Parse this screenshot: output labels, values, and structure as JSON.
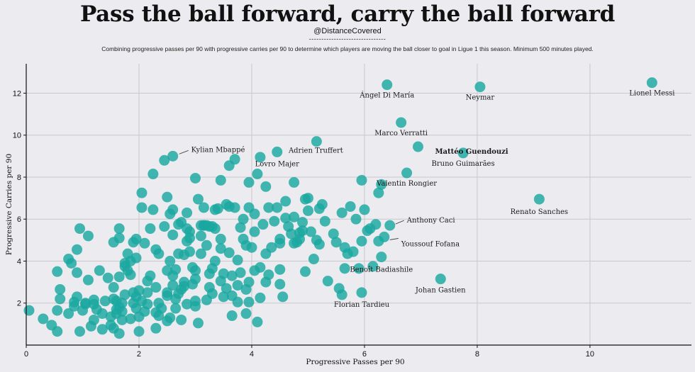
{
  "header": {
    "title": "Pass the ball forward, carry the ball forward",
    "handle": "@DistanceCovered",
    "dashes": "-------------------------------",
    "subtitle": "Combining progressive passes per 90 with progressive carries per 90 to determine which players are moving the ball closer to goal in Ligue 1 this season. Minimum 500 minutes played."
  },
  "colors": {
    "point": "#1aa7a0",
    "background": "#ecebef",
    "grid": "#c9c8cc"
  },
  "chart_data": {
    "type": "scatter",
    "xlabel": "Progressive Passes per 90",
    "ylabel": "Progressive Carries per 90",
    "xlim": [
      0,
      11.8
    ],
    "ylim": [
      0,
      13.4
    ],
    "xticks": [
      0,
      2,
      4,
      6,
      8,
      10
    ],
    "yticks": [
      2,
      4,
      6,
      8,
      10,
      12
    ],
    "grid": true,
    "labeled_points": [
      {
        "name": "Lionel Messi",
        "x": 11.1,
        "y": 12.5
      },
      {
        "name": "Neymar",
        "x": 8.05,
        "y": 12.3
      },
      {
        "name": "Ángel Di María",
        "x": 6.4,
        "y": 12.4
      },
      {
        "name": "Marco Verratti",
        "x": 6.65,
        "y": 10.6
      },
      {
        "name": "Mattéo Guendouzi",
        "x": 6.95,
        "y": 9.45
      },
      {
        "name": "Bruno Guimarães",
        "x": 7.75,
        "y": 9.15
      },
      {
        "name": "Valentin Rongier",
        "x": 6.75,
        "y": 8.2
      },
      {
        "name": "Renato Sanches",
        "x": 9.1,
        "y": 6.95
      },
      {
        "name": "Anthony Caci",
        "x": 6.45,
        "y": 5.7
      },
      {
        "name": "Youssouf Fofana",
        "x": 6.35,
        "y": 5.15
      },
      {
        "name": "Benoît Badiashile",
        "x": 6.3,
        "y": 4.2
      },
      {
        "name": "Johan Gastien",
        "x": 7.35,
        "y": 3.15
      },
      {
        "name": "Florian Tardieu",
        "x": 5.95,
        "y": 2.5
      },
      {
        "name": "Adrien Truffert",
        "x": 5.15,
        "y": 9.7
      },
      {
        "name": "Lovro Majer",
        "x": 4.45,
        "y": 9.2
      },
      {
        "name": "Kylian Mbappé",
        "x": 2.6,
        "y": 9.0
      }
    ],
    "points": [
      [
        0.05,
        1.65
      ],
      [
        0.3,
        1.25
      ],
      [
        0.45,
        0.95
      ],
      [
        0.55,
        0.65
      ],
      [
        0.55,
        1.65
      ],
      [
        0.6,
        2.2
      ],
      [
        0.6,
        2.65
      ],
      [
        0.55,
        3.5
      ],
      [
        0.75,
        1.5
      ],
      [
        0.75,
        4.1
      ],
      [
        0.8,
        3.9
      ],
      [
        0.85,
        2.05
      ],
      [
        0.9,
        2.3
      ],
      [
        0.9,
        4.55
      ],
      [
        0.9,
        3.45
      ],
      [
        0.95,
        0.65
      ],
      [
        0.95,
        5.55
      ],
      [
        1.0,
        1.65
      ],
      [
        1.05,
        2.0
      ],
      [
        1.1,
        3.1
      ],
      [
        1.1,
        5.2
      ],
      [
        1.15,
        0.9
      ],
      [
        1.2,
        2.15
      ],
      [
        1.2,
        1.2
      ],
      [
        1.2,
        1.95
      ],
      [
        1.3,
        3.55
      ],
      [
        1.35,
        1.5
      ],
      [
        1.35,
        0.75
      ],
      [
        1.4,
        2.1
      ],
      [
        1.45,
        3.2
      ],
      [
        1.5,
        0.95
      ],
      [
        1.5,
        1.35
      ],
      [
        1.55,
        2.2
      ],
      [
        1.55,
        4.9
      ],
      [
        1.55,
        2.75
      ],
      [
        1.55,
        0.8
      ],
      [
        1.6,
        1.7
      ],
      [
        1.6,
        2.1
      ],
      [
        1.6,
        1.5
      ],
      [
        1.65,
        3.25
      ],
      [
        1.65,
        5.1
      ],
      [
        1.65,
        5.55
      ],
      [
        1.65,
        1.8
      ],
      [
        1.65,
        0.55
      ],
      [
        1.7,
        1.2
      ],
      [
        1.7,
        1.6
      ],
      [
        1.7,
        2.0
      ],
      [
        1.75,
        2.4
      ],
      [
        1.75,
        3.9
      ],
      [
        1.8,
        4.35
      ],
      [
        1.8,
        3.55
      ],
      [
        1.85,
        1.25
      ],
      [
        1.85,
        4.0
      ],
      [
        1.9,
        2.0
      ],
      [
        1.9,
        2.5
      ],
      [
        1.9,
        4.9
      ],
      [
        1.95,
        2.3
      ],
      [
        1.95,
        1.75
      ],
      [
        1.95,
        4.15
      ],
      [
        1.95,
        5.05
      ],
      [
        2.0,
        2.6
      ],
      [
        2.0,
        0.65
      ],
      [
        2.05,
        6.55
      ],
      [
        2.05,
        2.1
      ],
      [
        2.1,
        1.6
      ],
      [
        2.1,
        4.85
      ],
      [
        2.15,
        2.5
      ],
      [
        2.15,
        1.95
      ],
      [
        2.2,
        5.55
      ],
      [
        2.2,
        3.3
      ],
      [
        2.25,
        8.15
      ],
      [
        2.3,
        0.8
      ],
      [
        2.3,
        2.75
      ],
      [
        2.3,
        4.55
      ],
      [
        2.35,
        1.4
      ],
      [
        2.35,
        2.0
      ],
      [
        2.4,
        1.75
      ],
      [
        2.45,
        8.8
      ],
      [
        2.45,
        5.65
      ],
      [
        2.5,
        1.15
      ],
      [
        2.5,
        2.35
      ],
      [
        2.5,
        3.55
      ],
      [
        2.5,
        7.05
      ],
      [
        2.5,
        2.5
      ],
      [
        2.55,
        1.3
      ],
      [
        2.55,
        4.0
      ],
      [
        2.6,
        5.25
      ],
      [
        2.6,
        6.45
      ],
      [
        2.6,
        3.3
      ],
      [
        2.65,
        1.75
      ],
      [
        2.65,
        2.2
      ],
      [
        2.65,
        3.6
      ],
      [
        2.7,
        4.35
      ],
      [
        2.7,
        2.45
      ],
      [
        2.75,
        1.2
      ],
      [
        2.75,
        2.65
      ],
      [
        2.75,
        5.85
      ],
      [
        2.8,
        4.3
      ],
      [
        2.8,
        3.0
      ],
      [
        2.8,
        2.8
      ],
      [
        2.85,
        1.95
      ],
      [
        2.85,
        6.3
      ],
      [
        2.9,
        5.4
      ],
      [
        2.9,
        5.1
      ],
      [
        2.9,
        4.45
      ],
      [
        2.95,
        2.9
      ],
      [
        3.0,
        7.95
      ],
      [
        3.0,
        2.1
      ],
      [
        3.0,
        1.85
      ],
      [
        3.0,
        3.15
      ],
      [
        3.05,
        6.95
      ],
      [
        3.05,
        1.05
      ],
      [
        3.1,
        5.7
      ],
      [
        3.1,
        5.2
      ],
      [
        3.1,
        4.35
      ],
      [
        3.15,
        5.7
      ],
      [
        3.15,
        5.7
      ],
      [
        3.2,
        5.7
      ],
      [
        3.2,
        2.15
      ],
      [
        3.25,
        5.65
      ],
      [
        3.25,
        3.4
      ],
      [
        3.25,
        2.75
      ],
      [
        3.3,
        5.65
      ],
      [
        3.3,
        3.65
      ],
      [
        3.35,
        5.55
      ],
      [
        3.35,
        4.0
      ],
      [
        3.4,
        6.5
      ],
      [
        3.45,
        7.85
      ],
      [
        3.45,
        4.6
      ],
      [
        3.45,
        3.05
      ],
      [
        3.5,
        2.3
      ],
      [
        3.5,
        3.4
      ],
      [
        3.55,
        2.7
      ],
      [
        3.6,
        6.6
      ],
      [
        3.6,
        4.4
      ],
      [
        3.6,
        8.55
      ],
      [
        3.65,
        1.4
      ],
      [
        3.65,
        3.3
      ],
      [
        3.65,
        2.35
      ],
      [
        3.7,
        8.85
      ],
      [
        3.7,
        6.55
      ],
      [
        3.75,
        4.05
      ],
      [
        3.75,
        2.85
      ],
      [
        3.8,
        5.6
      ],
      [
        3.8,
        3.45
      ],
      [
        3.85,
        6.0
      ],
      [
        3.9,
        2.65
      ],
      [
        3.9,
        4.75
      ],
      [
        3.95,
        6.55
      ],
      [
        3.95,
        3.0
      ],
      [
        3.95,
        2.05
      ],
      [
        4.0,
        4.65
      ],
      [
        4.05,
        5.4
      ],
      [
        4.05,
        3.55
      ],
      [
        4.1,
        8.15
      ],
      [
        4.15,
        8.95
      ],
      [
        4.15,
        3.7
      ],
      [
        4.15,
        2.25
      ],
      [
        4.2,
        5.75
      ],
      [
        4.25,
        4.35
      ],
      [
        4.25,
        3.0
      ],
      [
        4.3,
        3.35
      ],
      [
        4.35,
        4.65
      ],
      [
        4.4,
        5.9
      ],
      [
        4.45,
        6.55
      ],
      [
        4.5,
        4.85
      ],
      [
        4.5,
        5.05
      ],
      [
        4.5,
        3.6
      ],
      [
        4.5,
        2.9
      ],
      [
        4.55,
        2.3
      ],
      [
        4.6,
        6.85
      ],
      [
        4.65,
        5.65
      ],
      [
        4.7,
        5.3
      ],
      [
        4.75,
        4.85
      ],
      [
        4.75,
        6.1
      ],
      [
        4.75,
        7.75
      ],
      [
        4.8,
        4.9
      ],
      [
        4.85,
        5.05
      ],
      [
        4.85,
        5.35
      ],
      [
        4.9,
        5.45
      ],
      [
        4.95,
        3.5
      ],
      [
        5.0,
        7.0
      ],
      [
        5.05,
        5.4
      ],
      [
        5.1,
        4.1
      ],
      [
        5.15,
        5.0
      ],
      [
        5.2,
        4.8
      ],
      [
        5.3,
        5.9
      ],
      [
        5.35,
        3.05
      ],
      [
        5.45,
        5.3
      ],
      [
        5.5,
        4.9
      ],
      [
        5.55,
        2.7
      ],
      [
        5.6,
        2.4
      ],
      [
        5.6,
        6.3
      ],
      [
        5.65,
        3.65
      ],
      [
        5.7,
        4.35
      ],
      [
        5.75,
        6.6
      ],
      [
        5.8,
        4.45
      ],
      [
        5.85,
        6.0
      ],
      [
        5.9,
        3.65
      ],
      [
        5.95,
        4.95
      ],
      [
        6.0,
        6.45
      ],
      [
        6.05,
        5.45
      ],
      [
        6.1,
        5.55
      ],
      [
        6.15,
        3.75
      ],
      [
        6.2,
        5.75
      ],
      [
        6.25,
        4.95
      ],
      [
        6.25,
        7.25
      ],
      [
        6.3,
        7.65
      ],
      [
        5.25,
        6.7
      ],
      [
        5.0,
        6.4
      ],
      [
        4.95,
        6.95
      ],
      [
        4.25,
        7.55
      ],
      [
        4.05,
        6.25
      ],
      [
        3.85,
        5.05
      ],
      [
        3.45,
        5.05
      ],
      [
        3.2,
        4.75
      ],
      [
        3.0,
        3.55
      ],
      [
        2.95,
        3.7
      ],
      [
        2.85,
        4.95
      ],
      [
        2.85,
        5.55
      ],
      [
        3.95,
        7.75
      ],
      [
        4.6,
        6.05
      ],
      [
        4.3,
        6.55
      ],
      [
        3.75,
        2.05
      ],
      [
        2.25,
        6.45
      ],
      [
        2.05,
        7.25
      ],
      [
        3.55,
        6.7
      ],
      [
        3.35,
        6.45
      ],
      [
        3.15,
        6.55
      ],
      [
        2.7,
        5.75
      ],
      [
        2.55,
        6.25
      ],
      [
        2.35,
        4.35
      ],
      [
        2.15,
        3.05
      ],
      [
        1.85,
        3.35
      ],
      [
        1.75,
        3.75
      ],
      [
        1.25,
        1.7
      ],
      [
        1.05,
        1.95
      ],
      [
        0.85,
        1.85
      ],
      [
        5.65,
        4.65
      ],
      [
        5.95,
        7.85
      ],
      [
        5.2,
        6.5
      ],
      [
        4.9,
        5.85
      ],
      [
        2.6,
        2.85
      ],
      [
        3.3,
        2.45
      ],
      [
        3.9,
        1.5
      ],
      [
        4.1,
        1.1
      ],
      [
        2.3,
        1.55
      ],
      [
        2.0,
        1.35
      ]
    ]
  }
}
